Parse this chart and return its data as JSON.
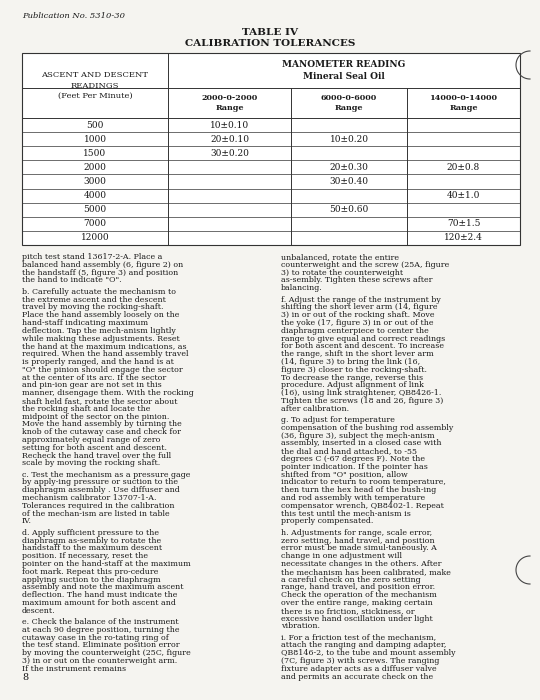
{
  "publication": "Publication No. 5310-30",
  "table_title": "TABLE IV",
  "table_subtitle": "CALIBRATION TOLERANCES",
  "rows": [
    {
      "fpm": "500",
      "c1": "10±0.10",
      "c2": "",
      "c3": ""
    },
    {
      "fpm": "1000",
      "c1": "20±0.10",
      "c2": "10±0.20",
      "c3": ""
    },
    {
      "fpm": "1500",
      "c1": "30±0.20",
      "c2": "",
      "c3": ""
    },
    {
      "fpm": "2000",
      "c1": "",
      "c2": "20±0.30",
      "c3": "20±0.8"
    },
    {
      "fpm": "3000",
      "c1": "",
      "c2": "30±0.40",
      "c3": ""
    },
    {
      "fpm": "4000",
      "c1": "",
      "c2": "",
      "c3": "40±1.0"
    },
    {
      "fpm": "5000",
      "c1": "",
      "c2": "50±0.60",
      "c3": ""
    },
    {
      "fpm": "7000",
      "c1": "",
      "c2": "",
      "c3": "70±1.5"
    },
    {
      "fpm": "12000",
      "c1": "",
      "c2": "",
      "c3": "120±2.4"
    }
  ],
  "body_left_paras": [
    "pitch test stand 13617-2-A.  Place a balanced hand assembly (6, figure 2) on the handstaff (5, figure 3) and position the hand to indicate \"O\".",
    "b.  Carefully actuate the mechanism to the extreme ascent and the descent travel by moving the rocking-shaft.  Place the hand assembly loosely on the hand-staff indicating maximum deflection.  Tap the mech-anism lightly while making these adjustments.  Reset the hand at the maximum indications, as required. When the hand assembly travel is properly ranged, and the hand is at \"O\" the pinion should engage the sector at the center of its arc.  If the sector and pin-ion gear are not set in this manner, disengage them. With the rocking shaft held fast, rotate the sector about the rocking shaft and locate the midpoint of the sector on the pinion.  Move the hand assembly by turning the knob of the cutaway case and check for approximately equal range of zero setting for both ascent and descent.  Recheck the hand travel over the full scale by moving the rocking shaft.",
    "c.  Test the mechanism as a pressure gage by apply-ing pressure or suction to the diaphragm assembly . Use diffuser and  mechanism calibrator 13707-1-A. Tolerances required in the calibration of the mechan-ism are listed in table IV.",
    "d.  Apply sufficient pressure to the diaphragm as-sembly to rotate the handstaff to the maximum descent position.   If necessary, reset the pointer on the hand-staff at the maximum foot mark.  Repeat this pro-cedure applying suction to the diaphragm assembly and note the maximum ascent deflection.  The hand must indicate the maximum amount for both ascent and descent.",
    "e.  Check the balance of the instrument at each 90 degree position, turning the cutaway case in the ro-tating ring of the test stand.  Eliminate position error by moving the counterweight (25C, figure 3) in or out on the counterweight arm.  If the instrument remains"
  ],
  "body_right_paras": [
    "unbalanced, rotate the entire counterweight and the screw (25A, figure 3) to rotate the counterweight as-sembly.  Tighten these screws after balancing.",
    "f.  Adjust the range of the instrument by shifting the short lever arm (14, figure 3) in or out of the rocking shaft.  Move the yoke (17, figure 3) in or out of the diaphragm centerpiece to center the range to give equal and correct readings for both ascent and descent.  To increase the range, shift in the short lever arm (14, figure 3) to bring the link (16, figure 3) closer to the rocking-shaft.  To decrease the range, reverse this procedure.  Adjust alignment of link (16), using link straightener, QB8426-1.  Tighten the screws (18 and 26, figure 3) after calibration.",
    "g.  To adjust for temperature compensation of the bushing rod assembly (36, figure 3), subject the mech-anism assembly, inserted in a closed case with the dial and hand attached, to -55 degrees C (-67 degrees F).  Note the pointer indication.  If the pointer has shifted from \"O\" position, allow indicator to return to room temperature,  then turn the hex head of the bush-ing and rod assembly with temperature compensator wrench, QB8402-1.  Repeat this test until the mech-anism is properly compensated.",
    "h.  Adjustments for range, scale error, zero setting, hand travel, and position error must be made simul-taneously.  A change in one adjustment will necessitate changes in the others.  After the mechanism has been calibrated, make a careful check on the zero setting range, hand  travel, and position error.  Check the operation of the mechanism over the entire range, making certain there is no friction, stickiness, or excessive hand oscillation under light vibration.",
    "i.  For a friction test of the mechanism, attach the ranging and damping adapter, QB8146-2, to the tube and mount assembly (7C, figure 3) with screws.  The ranging fixture adapter acts as a diffuser valve and permits an accurate check on the hand movement when the diaphragm is activated."
  ],
  "page_number": "8",
  "bg_color": "#f5f4f0",
  "text_color": "#1a1a1a"
}
